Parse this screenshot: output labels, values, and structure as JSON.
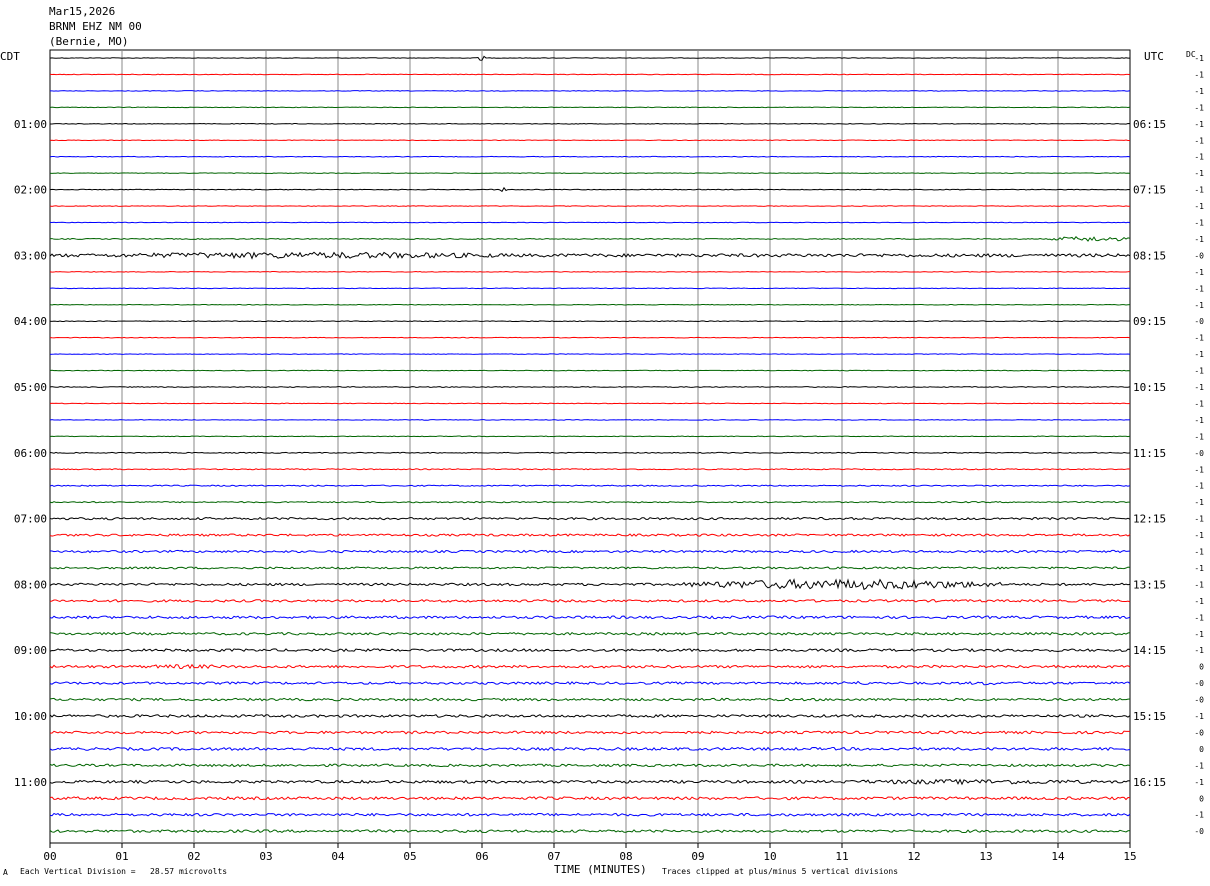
{
  "header": {
    "date": "Mar15,2026",
    "station": "BRNM EHZ NM 00",
    "location": "(Bernie, MO)"
  },
  "left_axis_label": "CDT",
  "right_axis_label": "UTC",
  "dc_label": "DC",
  "footer": {
    "scale_note": "Each Vertical Division =   28.57 microvolts",
    "xlabel": "TIME (MINUTES)",
    "clip_note": "Traces clipped at plus/minus 5 vertical divisions",
    "corner_mark": "A"
  },
  "chart_data": {
    "type": "line",
    "title": "",
    "xlabel": "TIME (MINUTES)",
    "xlim": [
      0,
      15
    ],
    "x_ticks": [
      "00",
      "01",
      "02",
      "03",
      "04",
      "05",
      "06",
      "07",
      "08",
      "09",
      "10",
      "11",
      "12",
      "13",
      "14",
      "15"
    ],
    "row_count": 48,
    "left_hour_labels": [
      "",
      "01:00",
      "02:00",
      "03:00",
      "04:00",
      "05:00",
      "06:00",
      "07:00",
      "08:00",
      "09:00",
      "10:00",
      "11:00"
    ],
    "right_hour_labels": [
      "",
      "06:15",
      "07:15",
      "08:15",
      "09:15",
      "10:15",
      "11:15",
      "12:15",
      "13:15",
      "14:15",
      "15:15",
      "16:15"
    ],
    "trace_colors": [
      "#000000",
      "#ff0000",
      "#0000ff",
      "#006400"
    ],
    "dc_offsets": [
      "-1",
      "-1",
      "-1",
      "-1",
      "-1",
      "-1",
      "-1",
      "-1",
      "-1",
      "-1",
      "-1",
      "-1",
      "-0",
      "-1",
      "-1",
      "-1",
      "-0",
      "-1",
      "-1",
      "-1",
      "-1",
      "-1",
      "-1",
      "-1",
      "-0",
      "-1",
      "-1",
      "-1",
      "-1",
      "-1",
      "-1",
      "-1",
      "-1",
      "-1",
      "-1",
      "-1",
      "-1",
      "0",
      "-0",
      "-0",
      "-1",
      "-0",
      "0",
      "-1",
      "-1",
      "0",
      "-1",
      "-0"
    ],
    "noise_amplitude": [
      0.3,
      0.3,
      0.3,
      0.3,
      0.3,
      0.3,
      0.3,
      0.3,
      0.35,
      0.3,
      0.3,
      0.45,
      1.6,
      0.3,
      0.3,
      0.3,
      0.35,
      0.3,
      0.3,
      0.3,
      0.4,
      0.3,
      0.3,
      0.3,
      0.45,
      0.5,
      0.6,
      0.6,
      1.1,
      1.1,
      1.1,
      1.0,
      1.2,
      1.2,
      1.3,
      1.2,
      1.3,
      1.3,
      1.2,
      1.2,
      1.3,
      1.3,
      1.4,
      1.2,
      1.4,
      1.4,
      1.3,
      1.3
    ],
    "events": [
      {
        "row": 0,
        "start": 5.9,
        "end": 6.05,
        "amp": 2.5
      },
      {
        "row": 8,
        "start": 6.2,
        "end": 6.35,
        "amp": 2.0
      },
      {
        "row": 11,
        "start": 13.9,
        "end": 15,
        "amp": 2.5
      },
      {
        "row": 12,
        "start": 0.5,
        "end": 6.8,
        "amp": 3.2
      },
      {
        "row": 32,
        "start": 8.8,
        "end": 13.2,
        "amp": 5.0
      },
      {
        "row": 37,
        "start": 1.2,
        "end": 2.5,
        "amp": 2.2
      },
      {
        "row": 38,
        "start": 10.8,
        "end": 11.5,
        "amp": 1.9
      },
      {
        "row": 38,
        "start": 12.7,
        "end": 13.3,
        "amp": 1.9
      },
      {
        "row": 44,
        "start": 10.6,
        "end": 15,
        "amp": 2.4
      }
    ]
  }
}
